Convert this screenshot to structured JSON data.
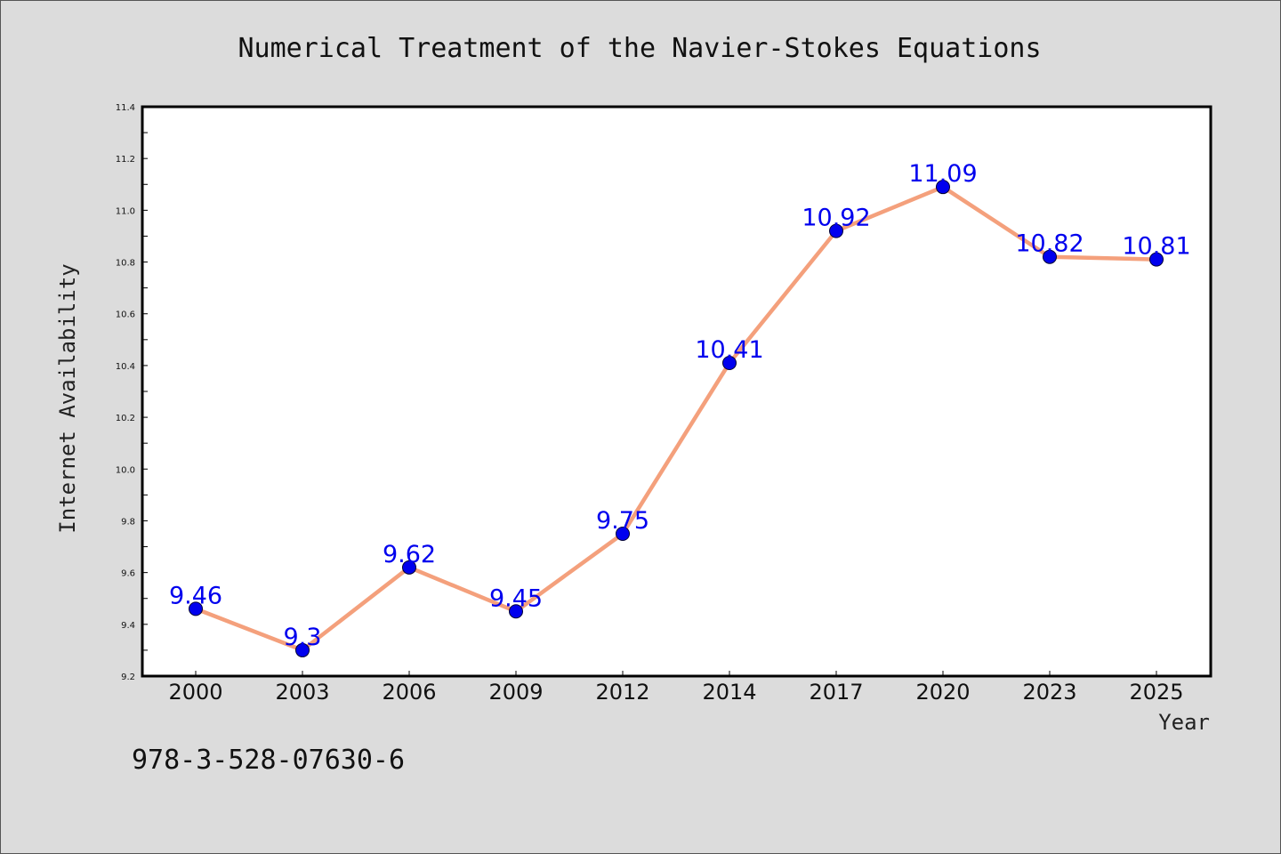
{
  "chart_data": {
    "type": "line",
    "title": "Numerical Treatment of the Navier-Stokes Equations",
    "xlabel": "Year",
    "ylabel": "Internet Availability",
    "categories": [
      "2000",
      "2003",
      "2006",
      "2009",
      "2012",
      "2014",
      "2017",
      "2020",
      "2023",
      "2025"
    ],
    "values": [
      9.46,
      9.3,
      9.62,
      9.45,
      9.75,
      10.41,
      10.92,
      11.09,
      10.82,
      10.81
    ],
    "data_labels": [
      "9.46",
      "9.3",
      "9.62",
      "9.45",
      "9.75",
      "10.41",
      "10.92",
      "11.09",
      "10.82",
      "10.81"
    ],
    "ylim": [
      9.2,
      11.4
    ],
    "yticks": [
      "9.2",
      "9.4",
      "9.6",
      "9.8",
      "10.0",
      "10.2",
      "10.4",
      "10.6",
      "10.8",
      "11.0",
      "11.2",
      "11.4"
    ],
    "grid": false,
    "legend": "none",
    "line_color": "#f4a07c",
    "marker_color": "#0000ee",
    "label_color": "#0000ee",
    "annotation": "978-3-528-07630-6"
  }
}
